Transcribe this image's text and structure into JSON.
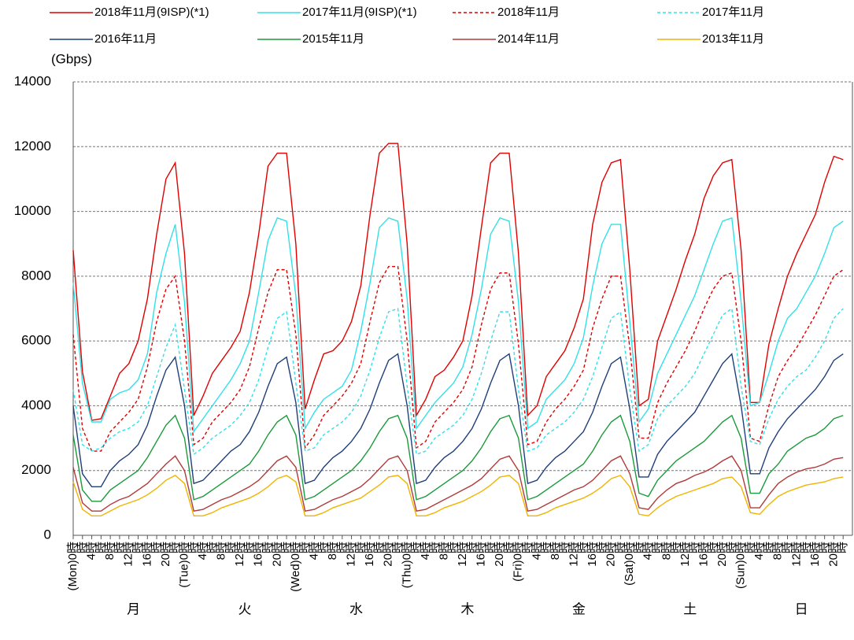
{
  "chart_data": {
    "type": "line",
    "y_label": "(Gbps)",
    "ylim": [
      0,
      14000
    ],
    "yticks": [
      0,
      2000,
      4000,
      6000,
      8000,
      10000,
      12000,
      14000
    ],
    "grid": true,
    "categories": [
      "(Mon)0時",
      "時",
      "4時",
      "時",
      "8時",
      "時",
      "12時",
      "時",
      "16時",
      "時",
      "20時",
      "時",
      "(Tue)0時",
      "時",
      "4時",
      "時",
      "8時",
      "時",
      "12時",
      "時",
      "16時",
      "時",
      "20時",
      "時",
      "(Wed)0時",
      "時",
      "4時",
      "時",
      "8時",
      "時",
      "12時",
      "時",
      "16時",
      "時",
      "20時",
      "時",
      "(Thu)0時",
      "時",
      "4時",
      "時",
      "8時",
      "時",
      "12時",
      "時",
      "16時",
      "時",
      "20時",
      "時",
      "(Fri)0時",
      "時",
      "4時",
      "時",
      "8時",
      "時",
      "12時",
      "時",
      "16時",
      "時",
      "20時",
      "時",
      "(Sat)0時",
      "時",
      "4時",
      "時",
      "8時",
      "時",
      "12時",
      "時",
      "16時",
      "時",
      "20時",
      "時",
      "(Sun)0時",
      "時",
      "4時",
      "時",
      "8時",
      "時",
      "12時",
      "時",
      "16時",
      "時",
      "20時",
      "時"
    ],
    "day_labels": [
      "月",
      "火",
      "水",
      "木",
      "金",
      "土",
      "日"
    ],
    "series": [
      {
        "name": "2018年11月(9ISP)(*1)",
        "color": "#e00000",
        "dash": false,
        "values": [
          8800,
          5050,
          3550,
          3600,
          4300,
          5000,
          5300,
          6000,
          7300,
          9300,
          11000,
          11500,
          8700,
          3700,
          4300,
          5000,
          5400,
          5800,
          6300,
          7500,
          9300,
          11400,
          11800,
          11800,
          9000,
          3900,
          4800,
          5600,
          5700,
          6000,
          6600,
          7700,
          9900,
          11800,
          12100,
          12100,
          9000,
          3700,
          4200,
          4900,
          5100,
          5500,
          6000,
          7400,
          9500,
          11500,
          11800,
          11800,
          8700,
          3700,
          4000,
          4900,
          5300,
          5700,
          6400,
          7300,
          9600,
          10900,
          11500,
          11600,
          8200,
          4000,
          4200,
          6000,
          6800,
          7600,
          8500,
          9300,
          10400,
          11100,
          11500,
          11600,
          8800,
          4100,
          4100,
          5900,
          7000,
          8000,
          8700,
          9300,
          9900,
          10900,
          11700,
          11600
        ]
      },
      {
        "name": "2017年11月(9ISP)(*1)",
        "color": "#33e0e8",
        "dash": false,
        "values": [
          7800,
          4700,
          3500,
          3500,
          4200,
          4400,
          4500,
          4800,
          5600,
          7500,
          8700,
          9600,
          7200,
          3200,
          3600,
          4000,
          4400,
          4800,
          5300,
          6000,
          7500,
          9100,
          9800,
          9700,
          7400,
          3300,
          3800,
          4200,
          4400,
          4600,
          5100,
          6300,
          7800,
          9500,
          9800,
          9700,
          7300,
          3300,
          3700,
          4100,
          4400,
          4700,
          5200,
          6200,
          7600,
          9300,
          9800,
          9700,
          7200,
          3300,
          3500,
          4200,
          4500,
          4800,
          5300,
          6100,
          7700,
          9000,
          9600,
          9600,
          6600,
          3500,
          3900,
          5000,
          5600,
          6200,
          6800,
          7400,
          8200,
          9000,
          9700,
          9800,
          7200,
          4000,
          4100,
          5000,
          6000,
          6700,
          7000,
          7500,
          8000,
          8700,
          9500,
          9700
        ]
      },
      {
        "name": "2018年11月",
        "color": "#e00000",
        "dash": true,
        "values": [
          6200,
          3300,
          2600,
          2600,
          3200,
          3500,
          3800,
          4200,
          5200,
          6600,
          7600,
          8000,
          6000,
          2800,
          3000,
          3500,
          3800,
          4100,
          4500,
          5200,
          6400,
          7500,
          8200,
          8200,
          6200,
          2700,
          3100,
          3700,
          4000,
          4300,
          4700,
          5300,
          6600,
          7800,
          8300,
          8300,
          6000,
          2700,
          2900,
          3500,
          3800,
          4100,
          4500,
          5200,
          6500,
          7600,
          8100,
          8100,
          5900,
          2800,
          2900,
          3500,
          3900,
          4200,
          4600,
          5100,
          6400,
          7300,
          8000,
          8000,
          5800,
          3000,
          3000,
          4100,
          4700,
          5200,
          5700,
          6300,
          7000,
          7600,
          8000,
          8100,
          6000,
          3000,
          2900,
          4000,
          4900,
          5400,
          5800,
          6300,
          6800,
          7400,
          8000,
          8200
        ]
      },
      {
        "name": "2017年11月",
        "color": "#33e0e8",
        "dash": true,
        "values": [
          4500,
          2800,
          2600,
          2700,
          3000,
          3200,
          3300,
          3500,
          4000,
          4900,
          5800,
          6500,
          4500,
          2500,
          2700,
          3000,
          3200,
          3400,
          3700,
          4100,
          4800,
          5800,
          6700,
          6900,
          4700,
          2600,
          2700,
          3100,
          3300,
          3500,
          3800,
          4300,
          5100,
          6100,
          6900,
          7000,
          4600,
          2500,
          2600,
          3000,
          3200,
          3400,
          3700,
          4200,
          5000,
          6000,
          6900,
          6900,
          4500,
          2600,
          2700,
          3100,
          3300,
          3500,
          3800,
          4200,
          4900,
          5800,
          6700,
          6900,
          4500,
          2600,
          2800,
          3600,
          4000,
          4300,
          4600,
          5000,
          5600,
          6200,
          6800,
          7000,
          4600,
          2900,
          2800,
          3600,
          4200,
          4600,
          4900,
          5100,
          5500,
          6000,
          6700,
          7000
        ]
      },
      {
        "name": "2016年11月",
        "color": "#1f3f7a",
        "dash": false,
        "values": [
          4000,
          1900,
          1500,
          1500,
          2000,
          2300,
          2500,
          2800,
          3400,
          4300,
          5100,
          5500,
          4000,
          1600,
          1700,
          2000,
          2300,
          2600,
          2800,
          3200,
          3800,
          4600,
          5300,
          5500,
          4100,
          1600,
          1700,
          2100,
          2400,
          2600,
          2900,
          3300,
          3900,
          4700,
          5400,
          5600,
          4000,
          1600,
          1700,
          2100,
          2400,
          2600,
          2900,
          3300,
          3900,
          4700,
          5400,
          5600,
          4000,
          1600,
          1700,
          2100,
          2400,
          2600,
          2900,
          3200,
          3800,
          4600,
          5300,
          5500,
          3900,
          1800,
          1800,
          2500,
          2900,
          3200,
          3500,
          3800,
          4300,
          4800,
          5300,
          5600,
          4000,
          1900,
          1900,
          2700,
          3200,
          3600,
          3900,
          4200,
          4500,
          4900,
          5400,
          5600
        ]
      },
      {
        "name": "2015年11月",
        "color": "#1a9a3a",
        "dash": false,
        "values": [
          3100,
          1400,
          1050,
          1050,
          1400,
          1600,
          1800,
          2000,
          2400,
          2900,
          3400,
          3700,
          3000,
          1100,
          1200,
          1400,
          1600,
          1800,
          2000,
          2200,
          2600,
          3100,
          3500,
          3700,
          3100,
          1100,
          1200,
          1400,
          1600,
          1800,
          2000,
          2300,
          2700,
          3200,
          3600,
          3700,
          3000,
          1100,
          1200,
          1400,
          1600,
          1800,
          2000,
          2300,
          2700,
          3200,
          3600,
          3700,
          3000,
          1100,
          1200,
          1400,
          1600,
          1800,
          2000,
          2200,
          2600,
          3100,
          3500,
          3700,
          2900,
          1300,
          1200,
          1700,
          2000,
          2300,
          2500,
          2700,
          2900,
          3200,
          3500,
          3700,
          3000,
          1300,
          1300,
          1900,
          2200,
          2600,
          2800,
          3000,
          3100,
          3300,
          3600,
          3700
        ]
      },
      {
        "name": "2014年11月",
        "color": "#b03a3a",
        "dash": false,
        "values": [
          2100,
          1000,
          750,
          750,
          950,
          1100,
          1200,
          1400,
          1600,
          1900,
          2200,
          2450,
          2000,
          750,
          800,
          950,
          1100,
          1200,
          1350,
          1500,
          1700,
          2000,
          2300,
          2450,
          2100,
          750,
          800,
          950,
          1100,
          1200,
          1350,
          1500,
          1750,
          2050,
          2350,
          2450,
          2000,
          750,
          800,
          950,
          1100,
          1250,
          1400,
          1550,
          1750,
          2050,
          2350,
          2450,
          2000,
          750,
          800,
          950,
          1100,
          1250,
          1400,
          1500,
          1700,
          2000,
          2300,
          2450,
          1900,
          850,
          800,
          1150,
          1400,
          1600,
          1700,
          1850,
          1950,
          2100,
          2300,
          2450,
          2000,
          850,
          850,
          1250,
          1600,
          1800,
          1950,
          2050,
          2100,
          2200,
          2350,
          2400
        ]
      },
      {
        "name": "2013年11月",
        "color": "#f0b400",
        "dash": false,
        "values": [
          1650,
          800,
          600,
          600,
          750,
          900,
          1000,
          1100,
          1250,
          1450,
          1700,
          1850,
          1600,
          600,
          600,
          700,
          850,
          950,
          1050,
          1150,
          1300,
          1500,
          1750,
          1850,
          1650,
          600,
          600,
          700,
          850,
          950,
          1050,
          1150,
          1350,
          1550,
          1800,
          1850,
          1600,
          600,
          600,
          700,
          850,
          950,
          1050,
          1200,
          1350,
          1550,
          1800,
          1850,
          1600,
          600,
          600,
          700,
          850,
          950,
          1050,
          1150,
          1300,
          1500,
          1750,
          1850,
          1500,
          650,
          600,
          850,
          1050,
          1200,
          1300,
          1400,
          1500,
          1600,
          1750,
          1800,
          1500,
          700,
          650,
          950,
          1200,
          1350,
          1450,
          1550,
          1600,
          1650,
          1750,
          1800
        ]
      }
    ]
  }
}
